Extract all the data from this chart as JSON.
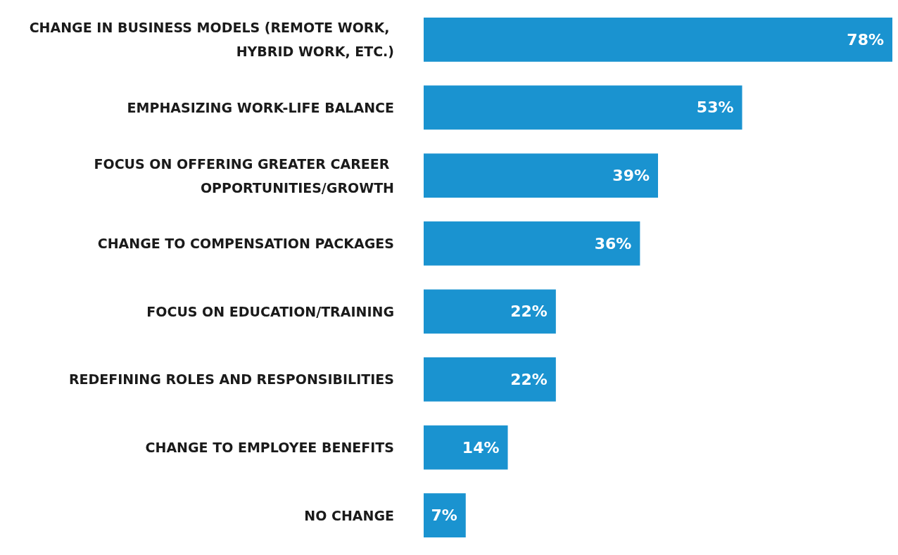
{
  "chart_data": {
    "type": "bar",
    "orientation": "horizontal",
    "categories": [
      "CHANGE IN BUSINESS MODELS (REMOTE WORK, HYBRID WORK, ETC.)",
      "EMPHASIZING WORK-LIFE BALANCE",
      "FOCUS ON OFFERING GREATER CAREER OPPORTUNITIES/GROWTH",
      "CHANGE TO COMPENSATION PACKAGES",
      "FOCUS ON EDUCATION/TRAINING",
      "REDEFINING ROLES AND RESPONSIBILITIES",
      "CHANGE TO EMPLOYEE BENEFITS",
      "NO CHANGE"
    ],
    "values": [
      78,
      53,
      39,
      36,
      22,
      22,
      14,
      7
    ],
    "value_labels": [
      "78%",
      "53%",
      "39%",
      "36%",
      "22%",
      "22%",
      "14%",
      "7%"
    ],
    "color": "#1a93d0"
  }
}
